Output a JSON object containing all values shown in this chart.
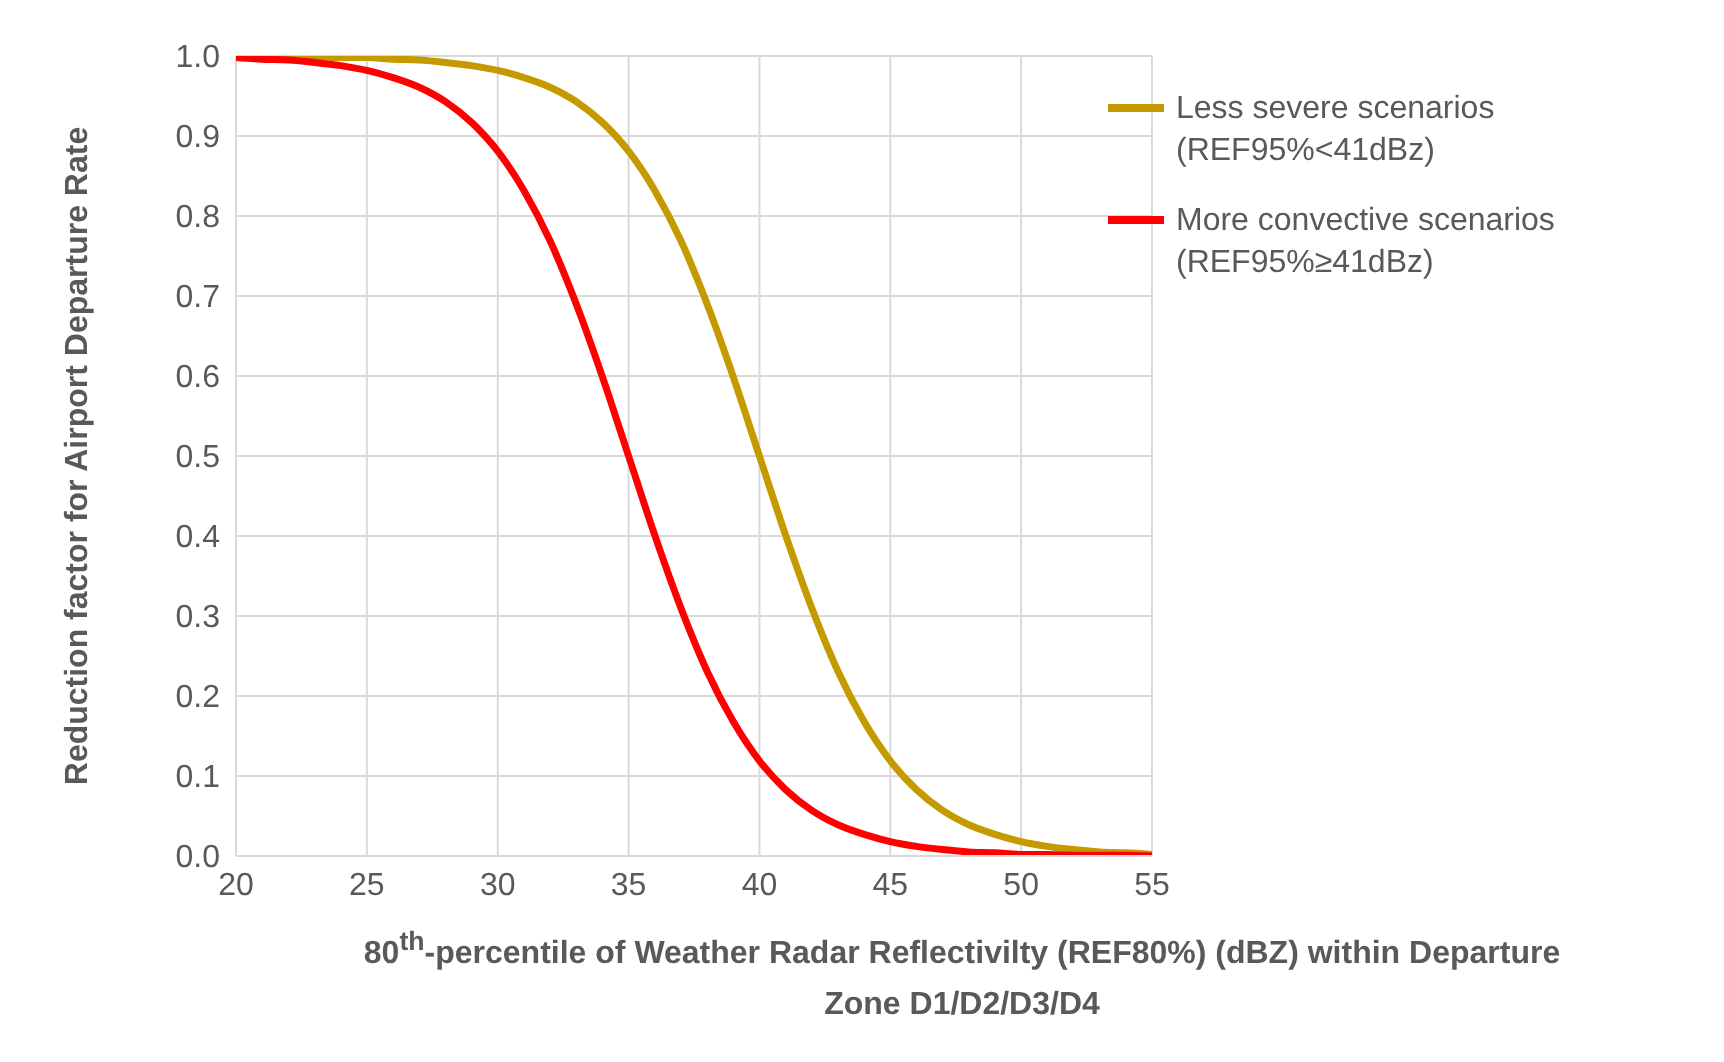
{
  "chart_data": {
    "type": "line",
    "xlabel": "80$^{th}$-percentile of Weather Radar Reflectivilty (REF80%) (dBZ) within Departure Zone D1/D2/D3/D4",
    "ylabel": "Reduction factor for Airport Departure Rate",
    "x": [
      20,
      21,
      22,
      23,
      24,
      25,
      26,
      27,
      28,
      29,
      30,
      31,
      32,
      33,
      34,
      35,
      36,
      37,
      38,
      39,
      40,
      41,
      42,
      43,
      44,
      45,
      46,
      47,
      48,
      49,
      50,
      51,
      52,
      53,
      54,
      55
    ],
    "series": [
      {
        "name": "Less severe scenarios (REF95%<41dBz)",
        "color": "#c49a00",
        "values": [
          1.0,
          1.0,
          0.999,
          0.999,
          0.998,
          0.998,
          0.996,
          0.995,
          0.992,
          0.988,
          0.982,
          0.973,
          0.961,
          0.943,
          0.917,
          0.881,
          0.832,
          0.769,
          0.69,
          0.599,
          0.5,
          0.401,
          0.31,
          0.231,
          0.168,
          0.119,
          0.083,
          0.057,
          0.039,
          0.027,
          0.018,
          0.012,
          0.008,
          0.005,
          0.004,
          0.002
        ]
      },
      {
        "name": "More convective scenarios (REF95%≥41dBz)",
        "color": "#ff0000",
        "values": [
          0.998,
          0.996,
          0.995,
          0.992,
          0.988,
          0.982,
          0.973,
          0.961,
          0.943,
          0.917,
          0.881,
          0.832,
          0.769,
          0.69,
          0.599,
          0.5,
          0.401,
          0.31,
          0.231,
          0.168,
          0.119,
          0.083,
          0.057,
          0.039,
          0.027,
          0.018,
          0.012,
          0.008,
          0.005,
          0.004,
          0.002,
          0.002,
          0.001,
          0.001,
          0.001,
          0.0
        ]
      }
    ],
    "xlim": [
      20,
      55
    ],
    "xticks": [
      20,
      25,
      30,
      35,
      40,
      45,
      50,
      55
    ],
    "ylim": [
      0,
      1
    ],
    "yticks": [
      {
        "value": 0,
        "label": "0.0"
      },
      {
        "value": 0.1,
        "label": "0.1"
      },
      {
        "value": 0.2,
        "label": "0.2"
      },
      {
        "value": 0.3,
        "label": "0.3"
      },
      {
        "value": 0.4,
        "label": "0.4"
      },
      {
        "value": 0.5,
        "label": "0.5"
      },
      {
        "value": 0.6,
        "label": "0.6"
      },
      {
        "value": 0.7,
        "label": "0.7"
      },
      {
        "value": 0.8,
        "label": "0.8"
      },
      {
        "value": 0.9,
        "label": "0.9"
      },
      {
        "value": 1,
        "label": "1.0"
      }
    ],
    "grid": true,
    "legend": "top right",
    "marker": "none",
    "line_style": "solid"
  }
}
